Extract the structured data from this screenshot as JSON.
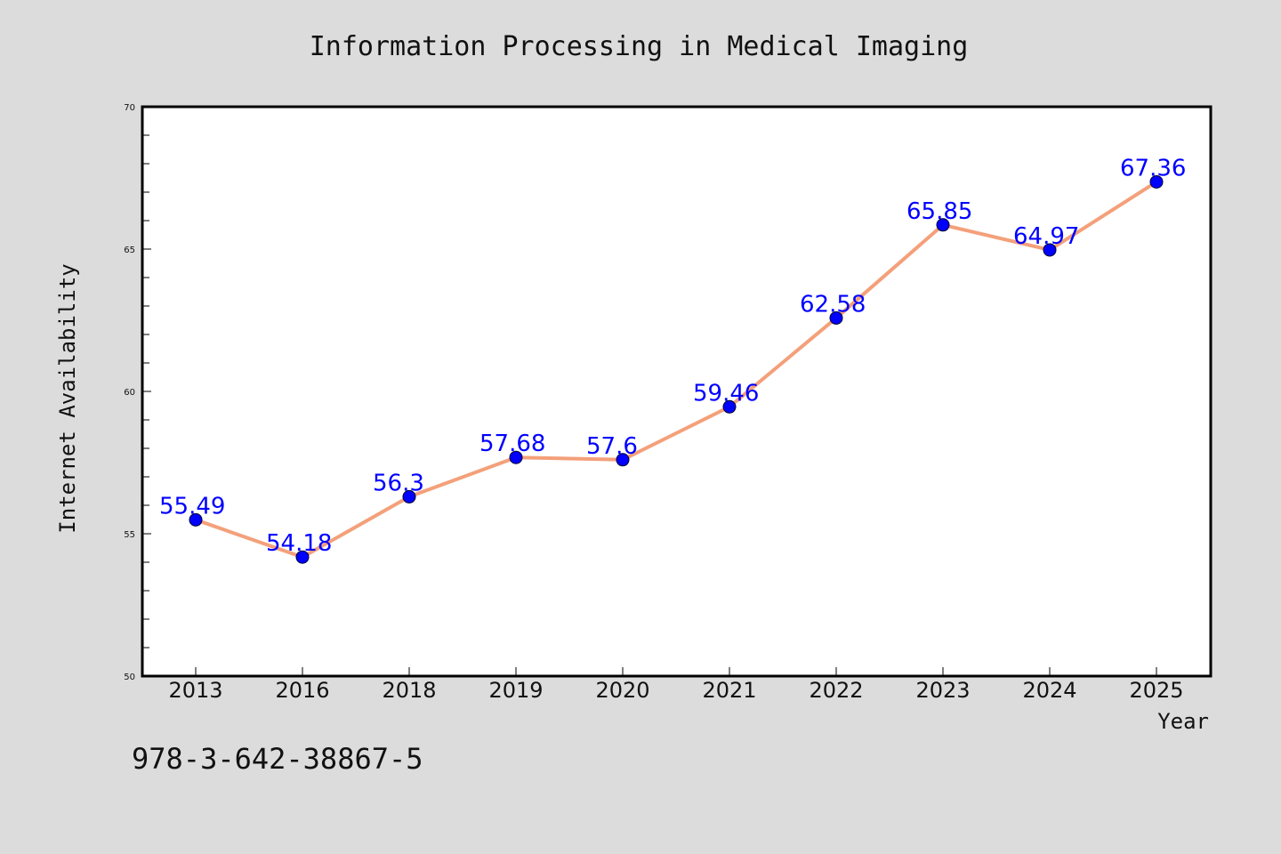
{
  "chart_data": {
    "type": "line",
    "title": "Information Processing in Medical Imaging",
    "xlabel": "Year",
    "ylabel": "Internet Availability",
    "categories": [
      "2013",
      "2016",
      "2018",
      "2019",
      "2020",
      "2021",
      "2022",
      "2023",
      "2024",
      "2025"
    ],
    "series": [
      {
        "values": [
          55.49,
          54.18,
          56.3,
          57.68,
          57.6,
          59.46,
          62.58,
          65.85,
          64.97,
          67.36
        ],
        "data_labels": [
          "55.49",
          "54.18",
          "56.3",
          "57.68",
          "57.6",
          "59.46",
          "62.58",
          "65.85",
          "64.97",
          "67.36"
        ],
        "line_color": "#f4a07a",
        "marker_color": "#0000ff"
      }
    ],
    "ylim": [
      50,
      70
    ],
    "yticks": [
      50,
      55,
      60,
      65,
      70
    ],
    "ytick_labels": [
      "50",
      "55",
      "60",
      "65",
      "70"
    ],
    "y_minor_step": 1,
    "grid": false,
    "legend": "none"
  },
  "annotation": {
    "isbn": "978-3-642-38867-5"
  },
  "colors": {
    "background": "#dcdcdc",
    "plot_background": "#ffffff",
    "line": "#f4a07a",
    "marker": "#0000ff",
    "data_label": "#0000ff"
  }
}
